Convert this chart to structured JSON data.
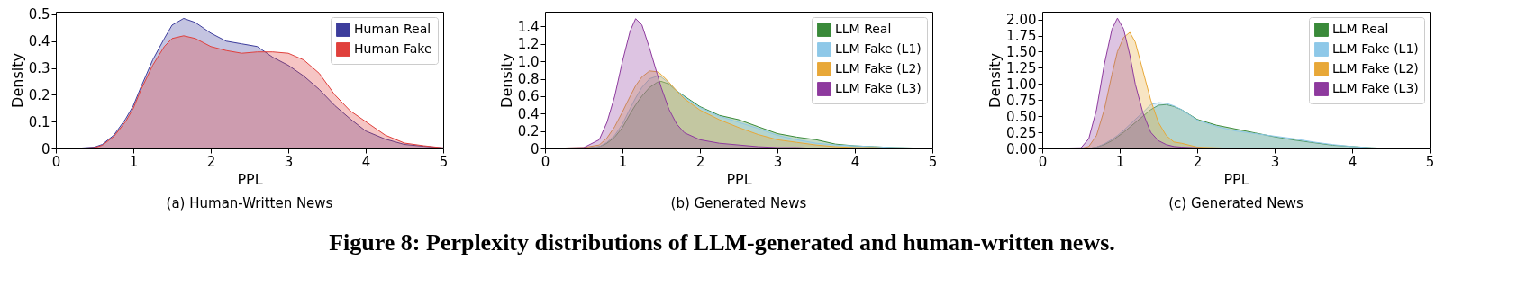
{
  "chart_data": [
    {
      "type": "area",
      "title": "(a) Human-Written News",
      "xlabel": "PPL",
      "ylabel": "Density",
      "xlim": [
        0,
        5
      ],
      "xticks": [
        0,
        1,
        2,
        3,
        4,
        5
      ],
      "ylim": [
        0,
        0.51
      ],
      "yticks": [
        0,
        0.1,
        0.2,
        0.3,
        0.4,
        0.5
      ],
      "grid": false,
      "legend": "top right",
      "x": [
        0,
        0.25,
        0.5,
        0.6,
        0.75,
        0.9,
        1,
        1.1,
        1.25,
        1.4,
        1.5,
        1.65,
        1.8,
        2,
        2.2,
        2.4,
        2.6,
        2.8,
        3,
        3.2,
        3.4,
        3.6,
        3.8,
        4,
        4.25,
        4.5,
        4.75,
        5
      ],
      "series": [
        {
          "name": "Human Real",
          "color": "#3d3d9c",
          "values": [
            0,
            0,
            0.005,
            0.015,
            0.05,
            0.11,
            0.16,
            0.23,
            0.33,
            0.41,
            0.46,
            0.485,
            0.47,
            0.43,
            0.4,
            0.39,
            0.38,
            0.34,
            0.31,
            0.27,
            0.22,
            0.16,
            0.11,
            0.065,
            0.035,
            0.015,
            0.008,
            0.002
          ]
        },
        {
          "name": "Human Fake",
          "color": "#e0403c",
          "values": [
            0,
            0,
            0.003,
            0.012,
            0.045,
            0.1,
            0.15,
            0.22,
            0.31,
            0.38,
            0.41,
            0.42,
            0.41,
            0.38,
            0.365,
            0.355,
            0.36,
            0.36,
            0.355,
            0.33,
            0.28,
            0.2,
            0.14,
            0.1,
            0.05,
            0.02,
            0.01,
            0.002
          ]
        }
      ]
    },
    {
      "type": "area",
      "title": "(b) Generated News",
      "xlabel": "PPL",
      "ylabel": "Density",
      "xlim": [
        0,
        5
      ],
      "xticks": [
        0,
        1,
        2,
        3,
        4,
        5
      ],
      "ylim": [
        0,
        1.57
      ],
      "yticks": [
        0,
        0.2,
        0.4,
        0.6,
        0.8,
        {
          "value": 1.0,
          "label": "1.0"
        },
        1.2,
        1.4
      ],
      "grid": false,
      "legend": "top right",
      "x": [
        0,
        0.5,
        0.7,
        0.8,
        0.9,
        1,
        1.1,
        1.17,
        1.25,
        1.35,
        1.45,
        1.5,
        1.6,
        1.7,
        1.8,
        2,
        2.25,
        2.5,
        2.75,
        3,
        3.25,
        3.5,
        3.75,
        4,
        4.25,
        4.5,
        5
      ],
      "series": [
        {
          "name": "LLM Real",
          "color": "#3a8a3a",
          "values": [
            0,
            0,
            0.02,
            0.06,
            0.13,
            0.24,
            0.4,
            0.5,
            0.6,
            0.7,
            0.76,
            0.77,
            0.74,
            0.66,
            0.6,
            0.48,
            0.38,
            0.33,
            0.25,
            0.17,
            0.13,
            0.1,
            0.05,
            0.03,
            0.02,
            0.01,
            0
          ]
        },
        {
          "name": "LLM Fake (L1)",
          "color": "#8ec8e8",
          "values": [
            0,
            0,
            0.02,
            0.07,
            0.15,
            0.28,
            0.46,
            0.58,
            0.7,
            0.8,
            0.83,
            0.82,
            0.75,
            0.66,
            0.59,
            0.47,
            0.37,
            0.3,
            0.23,
            0.15,
            0.1,
            0.06,
            0.04,
            0.03,
            0.02,
            0.01,
            0
          ]
        },
        {
          "name": "LLM Fake (L2)",
          "color": "#e8a838",
          "values": [
            0,
            0.01,
            0.04,
            0.12,
            0.25,
            0.42,
            0.6,
            0.72,
            0.82,
            0.89,
            0.88,
            0.85,
            0.76,
            0.66,
            0.57,
            0.44,
            0.33,
            0.24,
            0.16,
            0.1,
            0.07,
            0.04,
            0.02,
            0.01,
            0.01,
            0,
            0
          ]
        },
        {
          "name": "LLM Fake (L3)",
          "color": "#8e3a9e",
          "values": [
            0,
            0.01,
            0.1,
            0.3,
            0.6,
            1.0,
            1.35,
            1.49,
            1.42,
            1.15,
            0.85,
            0.7,
            0.45,
            0.28,
            0.18,
            0.1,
            0.06,
            0.04,
            0.02,
            0.01,
            0.01,
            0,
            0,
            0,
            0,
            0,
            0
          ]
        }
      ]
    },
    {
      "type": "area",
      "title": "(c) Generated News",
      "xlabel": "PPL",
      "ylabel": "Density",
      "xlim": [
        0,
        5
      ],
      "xticks": [
        0,
        1,
        2,
        3,
        4,
        5
      ],
      "ylim": [
        0,
        2.12
      ],
      "yticks": [
        {
          "value": 0,
          "label": "0.00"
        },
        0.25,
        {
          "value": 0.5,
          "label": "0.50"
        },
        0.75,
        {
          "value": 1,
          "label": "1.00"
        },
        1.25,
        {
          "value": 1.5,
          "label": "1.50"
        },
        1.75,
        {
          "value": 2,
          "label": "2.00"
        }
      ],
      "grid": false,
      "legend": "top right",
      "x": [
        0,
        0.5,
        0.6,
        0.7,
        0.8,
        0.9,
        0.97,
        1.05,
        1.13,
        1.2,
        1.3,
        1.4,
        1.5,
        1.6,
        1.7,
        1.8,
        2,
        2.25,
        2.5,
        2.75,
        3,
        3.25,
        3.5,
        3.75,
        4,
        4.25,
        4.5,
        5
      ],
      "series": [
        {
          "name": "LLM Real",
          "color": "#3a8a3a",
          "values": [
            0,
            0,
            0,
            0.02,
            0.06,
            0.12,
            0.18,
            0.25,
            0.33,
            0.4,
            0.5,
            0.6,
            0.67,
            0.68,
            0.65,
            0.6,
            0.45,
            0.36,
            0.3,
            0.24,
            0.18,
            0.13,
            0.09,
            0.05,
            0.03,
            0.01,
            0,
            0
          ]
        },
        {
          "name": "LLM Fake (L1)",
          "color": "#8ec8e8",
          "values": [
            0,
            0,
            0,
            0.02,
            0.07,
            0.14,
            0.2,
            0.28,
            0.37,
            0.45,
            0.56,
            0.68,
            0.71,
            0.7,
            0.66,
            0.6,
            0.44,
            0.34,
            0.27,
            0.23,
            0.19,
            0.15,
            0.1,
            0.06,
            0.03,
            0.01,
            0,
            0
          ]
        },
        {
          "name": "LLM Fake (L2)",
          "color": "#e8a838",
          "values": [
            0,
            0,
            0.03,
            0.2,
            0.6,
            1.15,
            1.5,
            1.72,
            1.8,
            1.65,
            1.2,
            0.75,
            0.4,
            0.2,
            0.1,
            0.08,
            0.02,
            0.01,
            0,
            0,
            0,
            0,
            0,
            0,
            0,
            0,
            0,
            0
          ]
        },
        {
          "name": "LLM Fake (L3)",
          "color": "#8e3a9e",
          "values": [
            0,
            0.01,
            0.15,
            0.6,
            1.3,
            1.85,
            2.02,
            1.85,
            1.45,
            1.0,
            0.55,
            0.25,
            0.12,
            0.06,
            0.03,
            0.02,
            0.01,
            0,
            0,
            0,
            0,
            0,
            0,
            0,
            0,
            0,
            0,
            0
          ]
        }
      ]
    },
    {
      "type": "other",
      "annotations": [
        "Figure 8: Perplexity distributions of LLM-generated and human-written news."
      ]
    }
  ]
}
